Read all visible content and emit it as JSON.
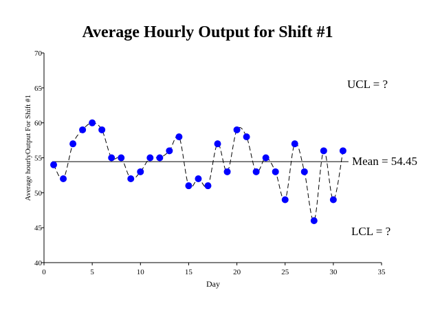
{
  "chart_data": {
    "type": "line",
    "title": "Average Hourly Output for Shift #1",
    "xlabel": "Day",
    "ylabel": "Average hourlyOutput For Shift #1",
    "xlim": [
      0,
      35
    ],
    "ylim": [
      40,
      70
    ],
    "x_ticks": [
      "0",
      "5",
      "10",
      "15",
      "20",
      "25",
      "30",
      "35"
    ],
    "y_ticks": [
      "40",
      "45",
      "50",
      "55",
      "60",
      "65",
      "70"
    ],
    "grid": false,
    "marker_color": "#0000ff",
    "line_style": "dashed",
    "x": [
      1,
      2,
      3,
      4,
      5,
      6,
      7,
      8,
      9,
      10,
      11,
      12,
      13,
      14,
      15,
      16,
      17,
      18,
      19,
      20,
      21,
      22,
      23,
      24,
      25,
      26,
      27,
      28,
      29,
      30,
      31
    ],
    "values": [
      54,
      52,
      57,
      59,
      60,
      59,
      55,
      55,
      52,
      53,
      55,
      55,
      56,
      58,
      51,
      52,
      51,
      57,
      53,
      59,
      58,
      53,
      55,
      53,
      49,
      57,
      53,
      46,
      56,
      49,
      56
    ],
    "mean": 54.45,
    "annotations": {
      "ucl": "UCL = ?",
      "mean": "Mean = 54.45",
      "lcl": "LCL = ?"
    }
  }
}
